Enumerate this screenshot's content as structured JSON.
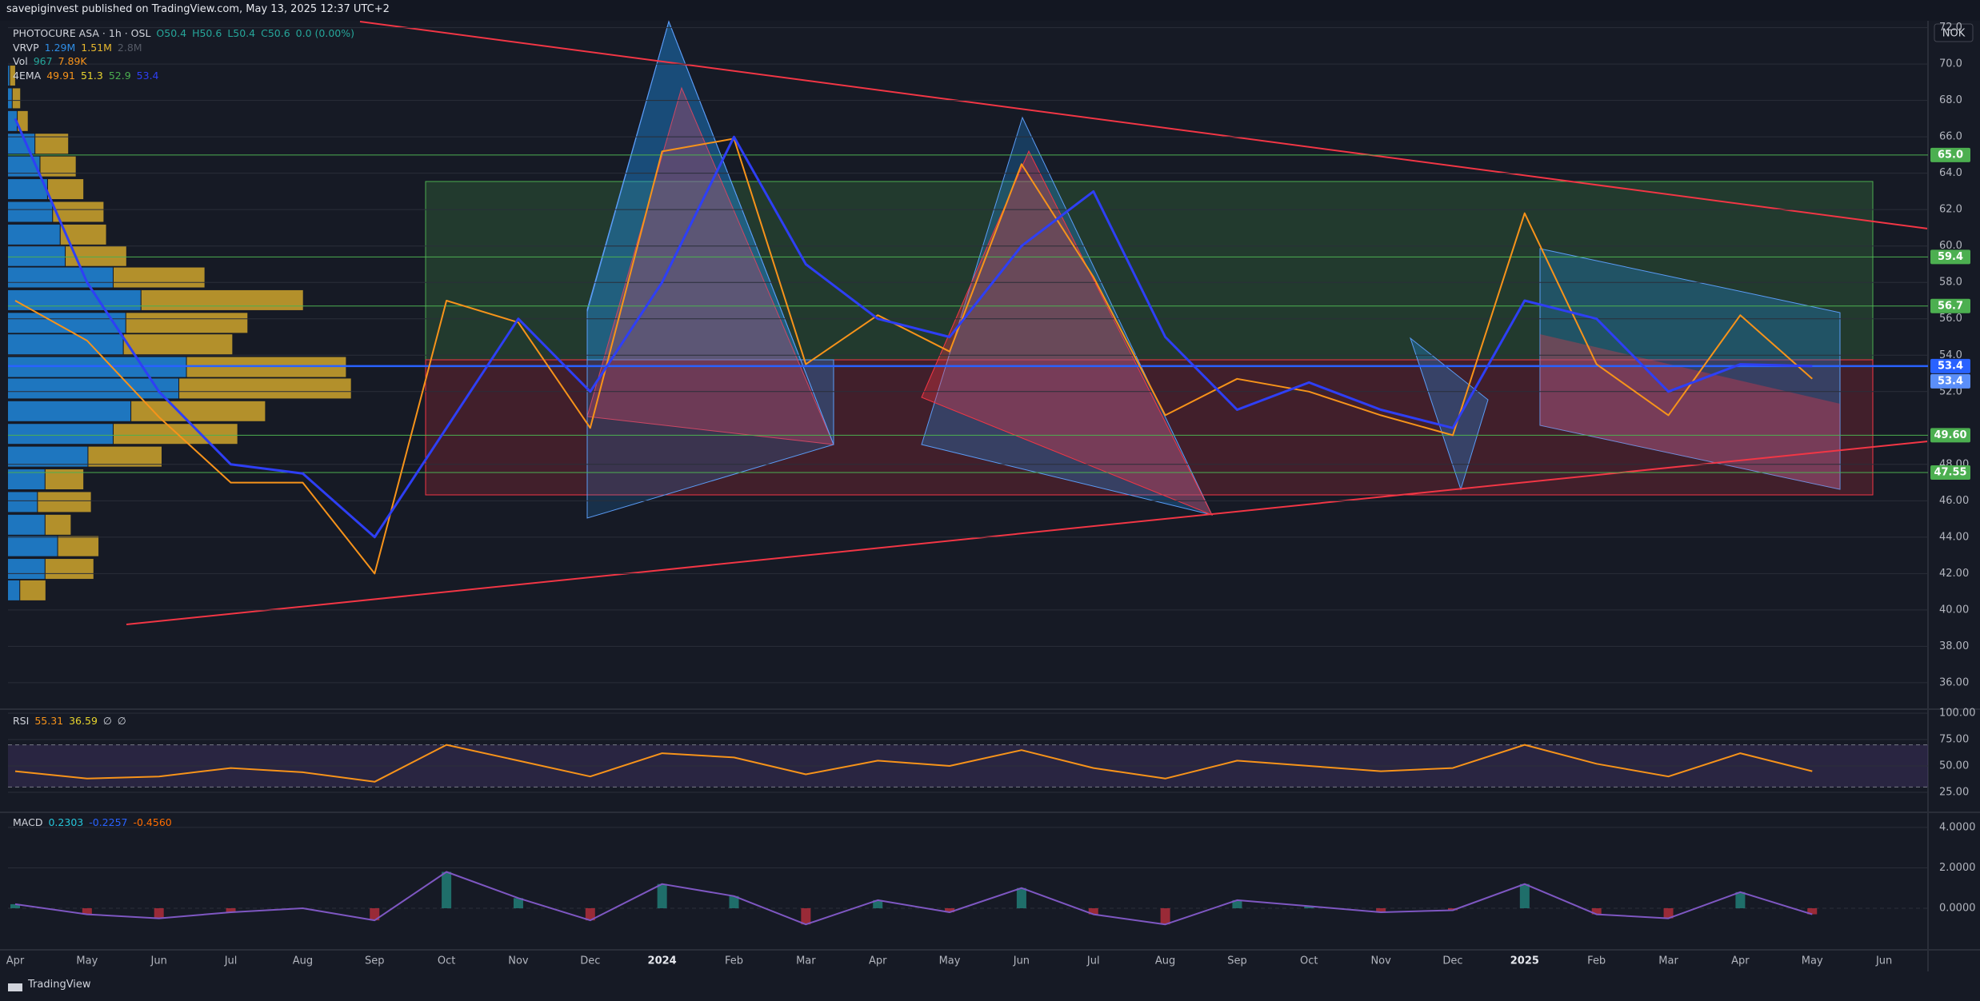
{
  "header": {
    "publisher": "savepiginvest published on TradingView.com, May 13, 2025 12:37 UTC+2"
  },
  "currency": "NOK",
  "footer": {
    "brand": "TradingView"
  },
  "chart_data": {
    "type": "line",
    "categories": [
      "Apr",
      "May",
      "Jun",
      "Jul",
      "Aug",
      "Sep",
      "Oct",
      "Nov",
      "Dec",
      "2024",
      "Feb",
      "Mar",
      "Apr",
      "May",
      "Jun",
      "Jul",
      "Aug",
      "Sep",
      "Oct",
      "Nov",
      "Dec",
      "2025",
      "Feb",
      "Mar",
      "Apr",
      "May",
      "Jun"
    ],
    "series": [
      {
        "color": "#f7931a",
        "values": [
          57,
          54.8,
          50.6,
          47,
          47,
          42,
          57,
          55.8,
          50,
          65.2,
          65.9,
          53.5,
          56.2,
          54.2,
          64.5,
          58.3,
          50.7,
          52.7,
          52,
          50.7,
          49.6,
          61.8,
          53.5,
          50.7,
          56.2,
          52.7,
          null
        ]
      },
      {
        "color": "#2e3ff5",
        "values": [
          67,
          58,
          52,
          48,
          47.5,
          44,
          50,
          56,
          52,
          58,
          66,
          59,
          56,
          55,
          60,
          63,
          55,
          51,
          52.5,
          51,
          50,
          57,
          56,
          52,
          53.5,
          53.4,
          null
        ]
      }
    ],
    "ylim": [
      34.59,
      72.29
    ],
    "yticks": [
      {
        "value": 36,
        "label": "36.00"
      },
      {
        "value": 38,
        "label": "38.00"
      },
      {
        "value": 40,
        "label": "40.00"
      },
      {
        "value": 42,
        "label": "42.00"
      },
      {
        "value": 44,
        "label": "44.00"
      },
      {
        "value": 46,
        "label": "46.00"
      },
      {
        "value": 48,
        "label": "48.00"
      },
      {
        "value": 52,
        "label": "52.0"
      },
      {
        "value": 54,
        "label": "54.0"
      },
      {
        "value": 56,
        "label": "56.0"
      },
      {
        "value": 58,
        "label": "58.0"
      },
      {
        "value": 60,
        "label": "60.0"
      },
      {
        "value": 62,
        "label": "62.0"
      },
      {
        "value": 64,
        "label": "64.0"
      },
      {
        "value": 66,
        "label": "66.0"
      },
      {
        "value": 68,
        "label": "68.0"
      },
      {
        "value": 70,
        "label": "70.0"
      },
      {
        "value": 72,
        "label": "72.0"
      }
    ],
    "grid": true,
    "levels": [
      {
        "value": 65.0,
        "label": "65.0",
        "color": "#4caf50"
      },
      {
        "value": 59.4,
        "label": "59.4",
        "color": "#4caf50"
      },
      {
        "value": 56.7,
        "label": "56.7",
        "color": "#4caf50"
      },
      {
        "value": 53.4,
        "label": "53.4",
        "color": "#2962ff"
      },
      {
        "value": 53.4,
        "label": "53.4",
        "color": "#5b8ff9"
      },
      {
        "value": 49.6,
        "label": "49.60",
        "color": "#4caf50"
      },
      {
        "value": 47.55,
        "label": "47.55",
        "color": "#4caf50"
      }
    ],
    "legend": [
      [
        {
          "text": "PHOTOCURE ASA · 1h · OSL",
          "color": "#d1d4dc"
        },
        {
          "text": "O50.4",
          "color": "#26a69a"
        },
        {
          "text": "H50.6",
          "color": "#26a69a"
        },
        {
          "text": "L50.4",
          "color": "#26a69a"
        },
        {
          "text": "C50.6",
          "color": "#26a69a"
        },
        {
          "text": "0.0 (0.00%)",
          "color": "#26a69a"
        }
      ],
      [
        {
          "text": "VRVP",
          "color": "#d1d4dc"
        },
        {
          "text": "1.29M",
          "color": "#2f8de4"
        },
        {
          "text": "1.51M",
          "color": "#e8b82e"
        },
        {
          "text": "2.8M",
          "color": "#555a66"
        }
      ],
      [
        {
          "text": "Vol",
          "color": "#d1d4dc"
        },
        {
          "text": "967",
          "color": "#26a69a"
        },
        {
          "text": "7.89K",
          "color": "#f7931a"
        }
      ],
      [
        {
          "text": "4EMA",
          "color": "#d1d4dc"
        },
        {
          "text": "49.91",
          "color": "#f7931a"
        },
        {
          "text": "51.3",
          "color": "#e8d52e"
        },
        {
          "text": "52.9",
          "color": "#4caf50"
        },
        {
          "text": "53.4",
          "color": "#2e3ff5"
        }
      ]
    ],
    "rsi": {
      "type": "line",
      "legend": [
        {
          "text": "RSI",
          "color": "#d1d4dc"
        },
        {
          "text": "55.31",
          "color": "#f7931a"
        },
        {
          "text": "36.59",
          "color": "#e8d52e"
        },
        {
          "text": "∅",
          "color": "#d1d4dc"
        },
        {
          "text": "∅",
          "color": "#d1d4dc"
        }
      ],
      "ylim": [
        6.8,
        103
      ],
      "yticks": [
        {
          "value": 25,
          "label": "25.00"
        },
        {
          "value": 50,
          "label": "50.00"
        },
        {
          "value": 75,
          "label": "75.00"
        },
        {
          "value": 100,
          "label": "100.00"
        }
      ],
      "bands": [
        30,
        70
      ],
      "color": "#f7931a",
      "values": [
        45,
        38,
        40,
        48,
        44,
        35,
        70,
        55,
        40,
        62,
        58,
        42,
        55,
        50,
        65,
        48,
        38,
        55,
        50,
        45,
        48,
        70,
        52,
        40,
        62,
        45,
        null
      ]
    },
    "macd": {
      "type": "line",
      "legend": [
        {
          "text": "MACD",
          "color": "#d1d4dc"
        },
        {
          "text": "0.2303",
          "color": "#26c6da"
        },
        {
          "text": "-0.2257",
          "color": "#2962ff"
        },
        {
          "text": "-0.4560",
          "color": "#ff6d00"
        }
      ],
      "ylim": [
        -2.02,
        4.67
      ],
      "yticks": [
        {
          "value": 0,
          "label": "0.0000"
        },
        {
          "value": 2,
          "label": "2.0000"
        },
        {
          "value": 4,
          "label": "4.0000"
        }
      ],
      "color": "#7e57c2",
      "values": [
        0.2,
        -0.3,
        -0.5,
        -0.2,
        0,
        -0.6,
        1.8,
        0.5,
        -0.6,
        1.2,
        0.6,
        -0.8,
        0.4,
        -0.2,
        1.0,
        -0.3,
        -0.8,
        0.4,
        0.1,
        -0.2,
        -0.1,
        1.2,
        -0.3,
        -0.5,
        0.8,
        -0.3,
        null
      ]
    }
  }
}
